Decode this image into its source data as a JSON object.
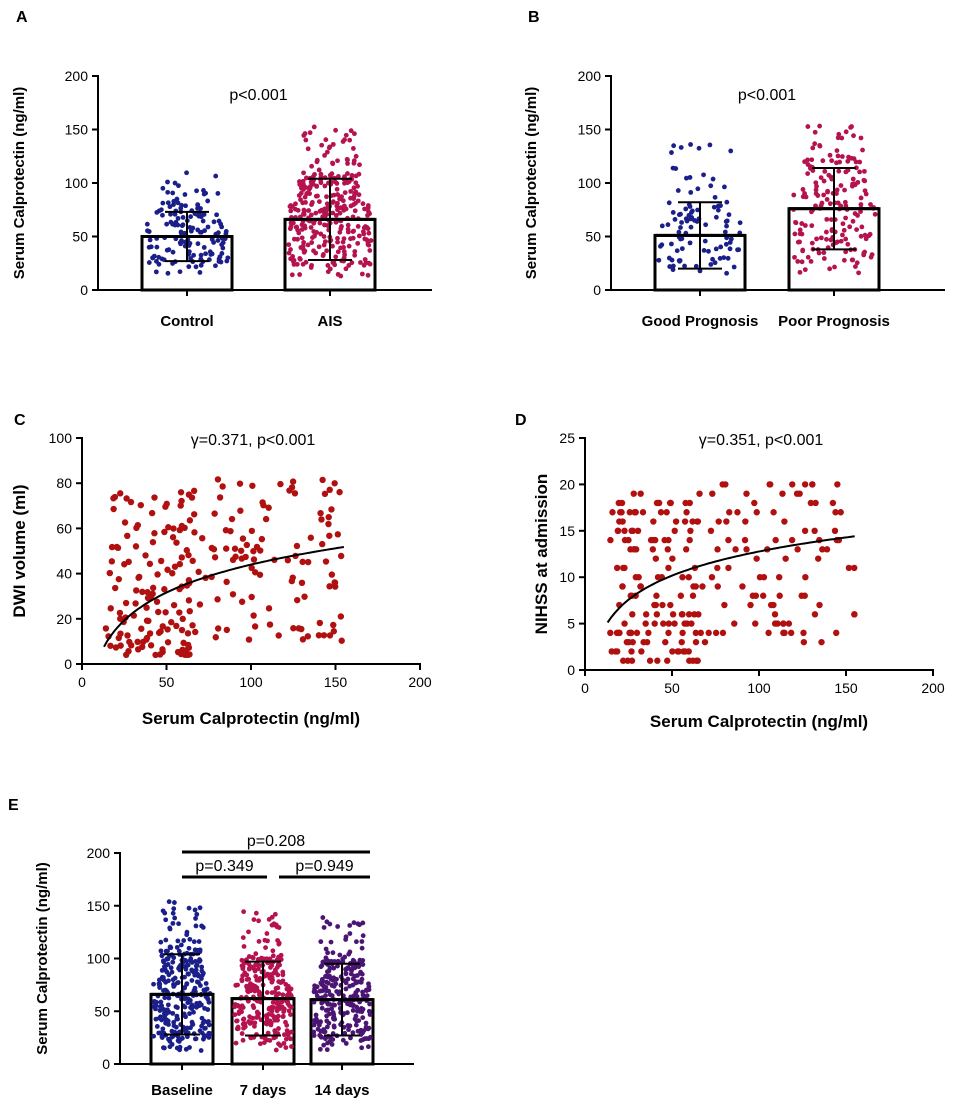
{
  "figure": {
    "panel_letters": [
      "A",
      "B",
      "C",
      "D",
      "E"
    ]
  },
  "chart_data": [
    {
      "id": "A",
      "type": "bar",
      "ylabel": "Serum Calprotectin (ng/ml)",
      "xlabel": "",
      "ylim": [
        0,
        200
      ],
      "yticks": [
        0,
        50,
        100,
        150,
        200
      ],
      "annotation": "p<0.001",
      "categories": [
        "Control",
        "AIS"
      ],
      "means": [
        50,
        66
      ],
      "sd_upper": [
        73,
        104
      ],
      "sd_lower": [
        27,
        28
      ],
      "point_ranges": [
        [
          14,
          110
        ],
        [
          12,
          155
        ]
      ],
      "point_counts": [
        150,
        320
      ],
      "colors": [
        "#1a1f8a",
        "#b5124f"
      ]
    },
    {
      "id": "B",
      "type": "bar",
      "ylabel": "Serum Calprotectin (ng/ml)",
      "xlabel": "",
      "ylim": [
        0,
        200
      ],
      "yticks": [
        0,
        50,
        100,
        150,
        200
      ],
      "annotation": "p<0.001",
      "categories": [
        "Good Prognosis",
        "Poor Prognosis"
      ],
      "means": [
        51,
        76
      ],
      "sd_upper": [
        82,
        114
      ],
      "sd_lower": [
        20,
        38
      ],
      "point_ranges": [
        [
          14,
          142
        ],
        [
          14,
          155
        ]
      ],
      "point_counts": [
        100,
        180
      ],
      "colors": [
        "#1a1f8a",
        "#b5124f"
      ]
    },
    {
      "id": "C",
      "type": "scatter",
      "xlabel": "Serum Calprotectin (ng/ml)",
      "ylabel": "DWI volume (ml)",
      "xlim": [
        0,
        200
      ],
      "ylim": [
        0,
        100
      ],
      "xticks": [
        0,
        50,
        100,
        150,
        200
      ],
      "yticks": [
        0,
        20,
        40,
        60,
        80,
        100
      ],
      "annotation": "γ=0.371, p<0.001",
      "point_color": "#b0100f",
      "point_count": 240,
      "fit": {
        "model": "logarithmic",
        "a": -38,
        "b": 17.8,
        "x_range": [
          13,
          155
        ]
      }
    },
    {
      "id": "D",
      "type": "scatter",
      "xlabel": "Serum Calprotectin (ng/ml)",
      "ylabel": "NIHSS at admission",
      "xlim": [
        0,
        200
      ],
      "ylim": [
        0,
        25
      ],
      "xticks": [
        0,
        50,
        100,
        150,
        200
      ],
      "yticks": [
        0,
        5,
        10,
        15,
        20,
        25
      ],
      "annotation": "γ=0.351, p<0.001",
      "point_color": "#b0100f",
      "point_count": 240,
      "fit": {
        "model": "logarithmic",
        "a": -4.5,
        "b": 3.75,
        "x_range": [
          13,
          155
        ]
      }
    },
    {
      "id": "E",
      "type": "bar",
      "ylabel": "Serum Calprotectin (ng/ml)",
      "xlabel": "",
      "ylim": [
        0,
        200
      ],
      "yticks": [
        0,
        50,
        100,
        150,
        200
      ],
      "categories": [
        "Baseline",
        "7 days",
        "14 days"
      ],
      "means": [
        66,
        62,
        61
      ],
      "sd_upper": [
        104,
        97,
        95
      ],
      "sd_lower": [
        28,
        27,
        27
      ],
      "point_ranges": [
        [
          12,
          155
        ],
        [
          12,
          145
        ],
        [
          12,
          140
        ]
      ],
      "point_counts": [
        300,
        280,
        280
      ],
      "colors": [
        "#1a1f8a",
        "#b5124f",
        "#4b1573"
      ],
      "comparisons": [
        {
          "label": "p=0.349",
          "from": 0,
          "to": 1,
          "level": 1
        },
        {
          "label": "p=0.949",
          "from": 1,
          "to": 2,
          "level": 1
        },
        {
          "label": "p=0.208",
          "from": 0,
          "to": 2,
          "level": 2
        }
      ]
    }
  ]
}
